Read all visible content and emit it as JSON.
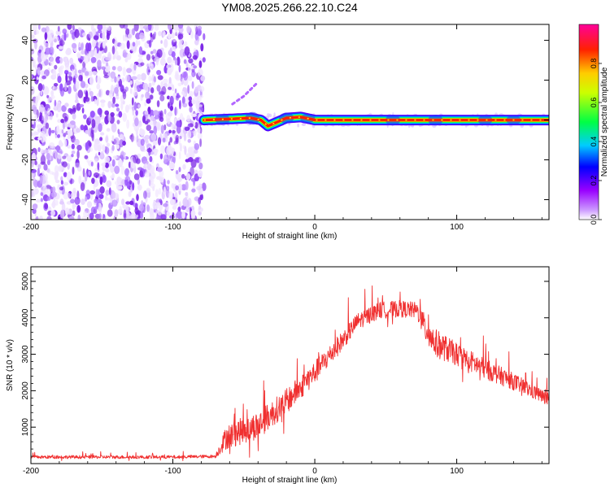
{
  "figure_title": "YM08.2025.266.22.10.C24",
  "chart_data": [
    {
      "type": "heatmap",
      "title": "YM08.2025.266.22.10.C24",
      "xlabel": "Height of straight line (km)",
      "ylabel": "Frequency (Hz)",
      "xlim": [
        -200,
        165
      ],
      "ylim": [
        -50,
        48
      ],
      "x_ticks": [
        -200,
        -100,
        0,
        100
      ],
      "y_ticks": [
        -40,
        -20,
        0,
        20,
        40
      ],
      "colorbar": {
        "label": "Normalized spectral amplitude",
        "range": [
          0,
          1
        ],
        "ticks": [
          "0.0",
          "0.2",
          "0.4",
          "0.6",
          "0.8"
        ],
        "tick_values": [
          0.0,
          0.2,
          0.4,
          0.6,
          0.8
        ],
        "colors": [
          "#ffffff",
          "#9900ff",
          "#0000ff",
          "#00ffff",
          "#00ff00",
          "#ffff00",
          "#ff0000",
          "#ff00ff"
        ]
      },
      "noise_region": {
        "x_range": [
          -200,
          -78
        ],
        "freq_range": [
          -50,
          48
        ],
        "amplitude": [
          0.05,
          0.3
        ]
      },
      "signal_band": {
        "x_range": [
          -78,
          165
        ],
        "center_freq": 0,
        "halfwidth_hz": 1.5,
        "peak_amplitude": 0.95
      },
      "signal_wiggle": [
        {
          "x": -78,
          "f": 0
        },
        {
          "x": -60,
          "f": 0.5
        },
        {
          "x": -45,
          "f": 1
        },
        {
          "x": -38,
          "f": 0
        },
        {
          "x": -33,
          "f": -3
        },
        {
          "x": -28,
          "f": -1.5
        },
        {
          "x": -20,
          "f": 1
        },
        {
          "x": -10,
          "f": 1.5
        },
        {
          "x": 0,
          "f": 0
        },
        {
          "x": 165,
          "f": 0
        }
      ],
      "side_trace": [
        {
          "x": -58,
          "f": 8
        },
        {
          "x": -50,
          "f": 12
        },
        {
          "x": -40,
          "f": 19
        }
      ]
    },
    {
      "type": "line",
      "xlabel": "Height of straight line (km)",
      "ylabel": "SNR (10 * v/v)",
      "xlim": [
        -200,
        165
      ],
      "ylim": [
        0,
        5400
      ],
      "x_ticks": [
        -200,
        -100,
        0,
        100
      ],
      "y_ticks": [
        1000,
        2000,
        3000,
        4000,
        5000
      ],
      "series": [
        {
          "name": "SNR",
          "color": "#f03030",
          "envelope": [
            {
              "x": -200,
              "y": 180
            },
            {
              "x": -100,
              "y": 180
            },
            {
              "x": -70,
              "y": 200
            },
            {
              "x": -62,
              "y": 750
            },
            {
              "x": -40,
              "y": 1050
            },
            {
              "x": -20,
              "y": 1700
            },
            {
              "x": 0,
              "y": 2500
            },
            {
              "x": 20,
              "y": 3400
            },
            {
              "x": 30,
              "y": 3900
            },
            {
              "x": 45,
              "y": 4200
            },
            {
              "x": 60,
              "y": 4250
            },
            {
              "x": 72,
              "y": 4200
            },
            {
              "x": 78,
              "y": 3700
            },
            {
              "x": 85,
              "y": 3300
            },
            {
              "x": 100,
              "y": 3000
            },
            {
              "x": 120,
              "y": 2600
            },
            {
              "x": 140,
              "y": 2250
            },
            {
              "x": 165,
              "y": 1750
            }
          ],
          "noise_amplitude": [
            {
              "x": -200,
              "y": 45
            },
            {
              "x": -70,
              "y": 45
            },
            {
              "x": -62,
              "y": 350
            },
            {
              "x": -40,
              "y": 380
            },
            {
              "x": 0,
              "y": 320
            },
            {
              "x": 30,
              "y": 230
            },
            {
              "x": 72,
              "y": 230
            },
            {
              "x": 80,
              "y": 420
            },
            {
              "x": 100,
              "y": 320
            },
            {
              "x": 165,
              "y": 180
            }
          ]
        }
      ]
    }
  ]
}
